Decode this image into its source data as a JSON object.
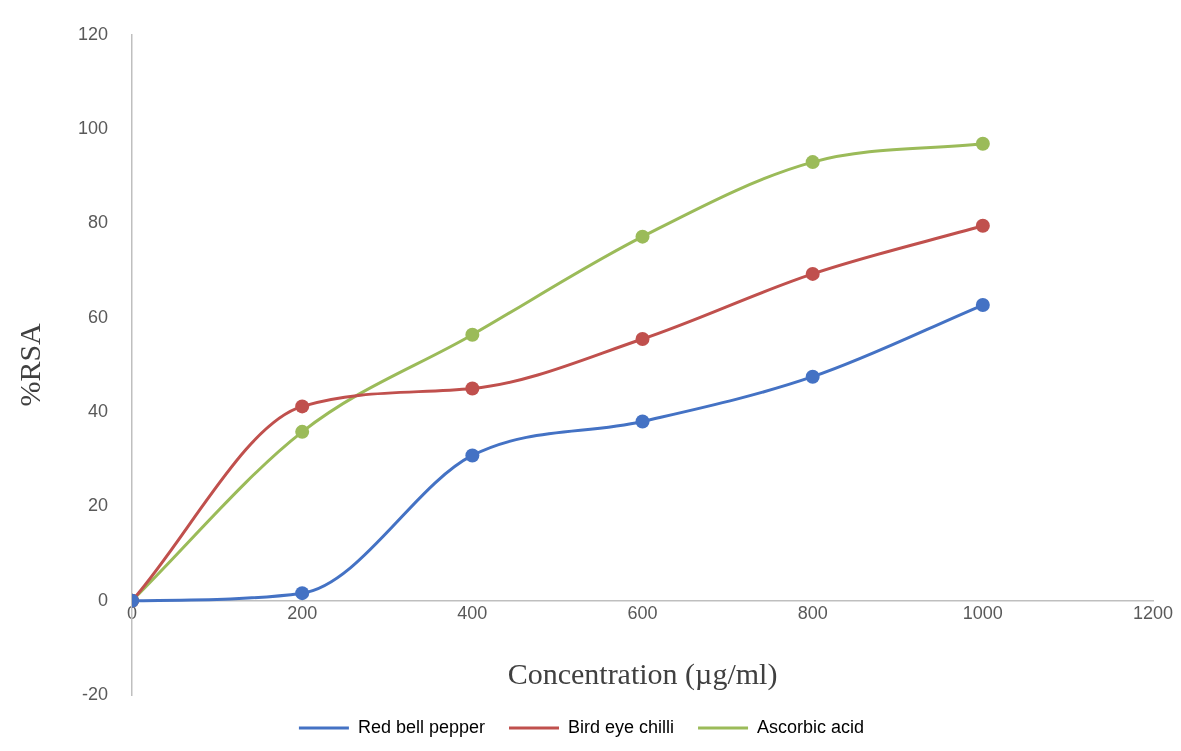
{
  "chart_data": {
    "type": "line",
    "xlabel": "Concentration (µg/ml)",
    "ylabel": "%RSA",
    "x": [
      0,
      200,
      400,
      600,
      800,
      1000
    ],
    "series": [
      {
        "name": "Red bell pepper",
        "color": "#4472c4",
        "values": [
          0,
          1.6,
          30.8,
          38,
          47.5,
          62.7
        ]
      },
      {
        "name": "Bird eye chilli",
        "color": "#c0504d",
        "values": [
          0,
          41.2,
          45,
          55.5,
          69.3,
          79.5
        ]
      },
      {
        "name": "Ascorbic acid",
        "color": "#9bbb59",
        "values": [
          0,
          35.8,
          56.4,
          77.2,
          93,
          96.9
        ]
      }
    ],
    "xlim": [
      0,
      1200
    ],
    "xticks": [
      0,
      200,
      400,
      600,
      800,
      1000,
      1200
    ],
    "ylim": [
      -20,
      120
    ],
    "yticks": [
      -20,
      0,
      20,
      40,
      60,
      80,
      100,
      120
    ],
    "grid": false,
    "legend": "bottom",
    "marker": "circle",
    "line_style": "solid"
  }
}
